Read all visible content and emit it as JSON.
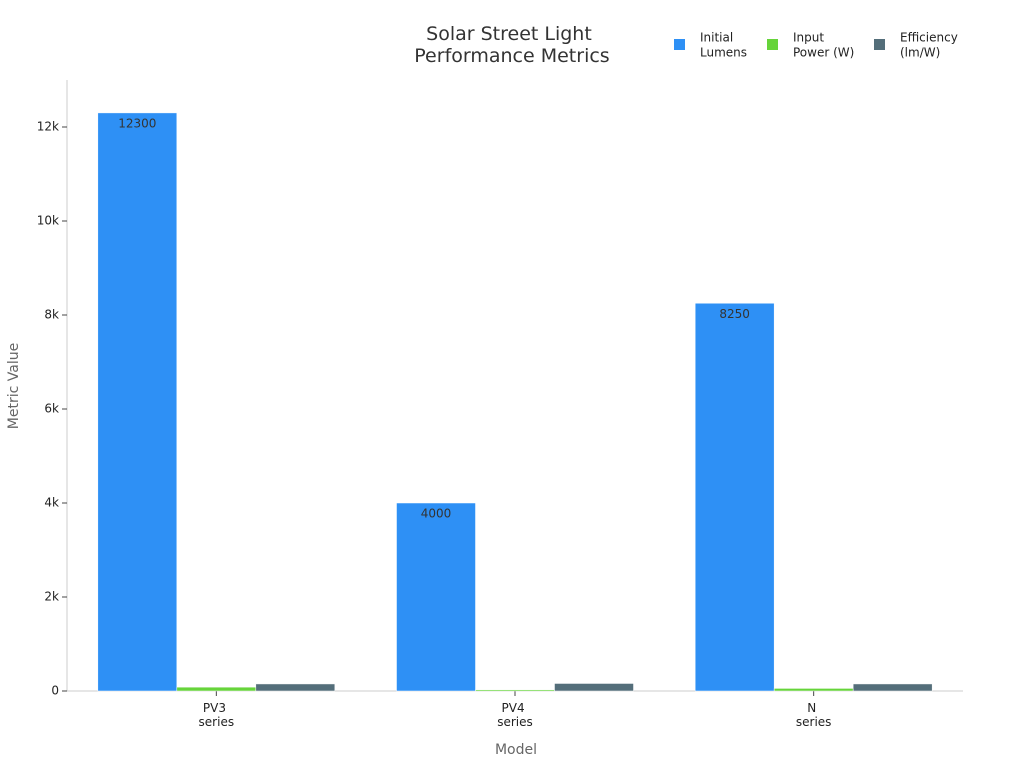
{
  "chart_data": {
    "type": "bar",
    "title": "Solar Street Light Performance Metrics",
    "x_label": "Model",
    "y_label": "Metric Value",
    "categories": [
      "PV3 series",
      "PV4 series",
      "N series"
    ],
    "series": [
      {
        "name": "Initial Lumens",
        "color": "#2e90f5",
        "values": [
          12300,
          4000,
          8250
        ],
        "show_labels": true
      },
      {
        "name": "Input Power (W)",
        "color": "#66d43a",
        "values": [
          82,
          25,
          55
        ]
      },
      {
        "name": "Efficiency (lm/W)",
        "color": "#546e7a",
        "values": [
          150,
          160,
          150
        ]
      }
    ],
    "ylim": [
      0,
      13000
    ],
    "yticks": [
      0,
      {
        "value": 2000,
        "label": "2k"
      },
      {
        "value": 4000,
        "label": "4k"
      },
      {
        "value": 6000,
        "label": "6k"
      },
      {
        "value": 8000,
        "label": "8k"
      },
      {
        "value": 10000,
        "label": "10k"
      },
      {
        "value": 12000,
        "label": "12k"
      }
    ],
    "legend": "top-right",
    "grid": false
  }
}
